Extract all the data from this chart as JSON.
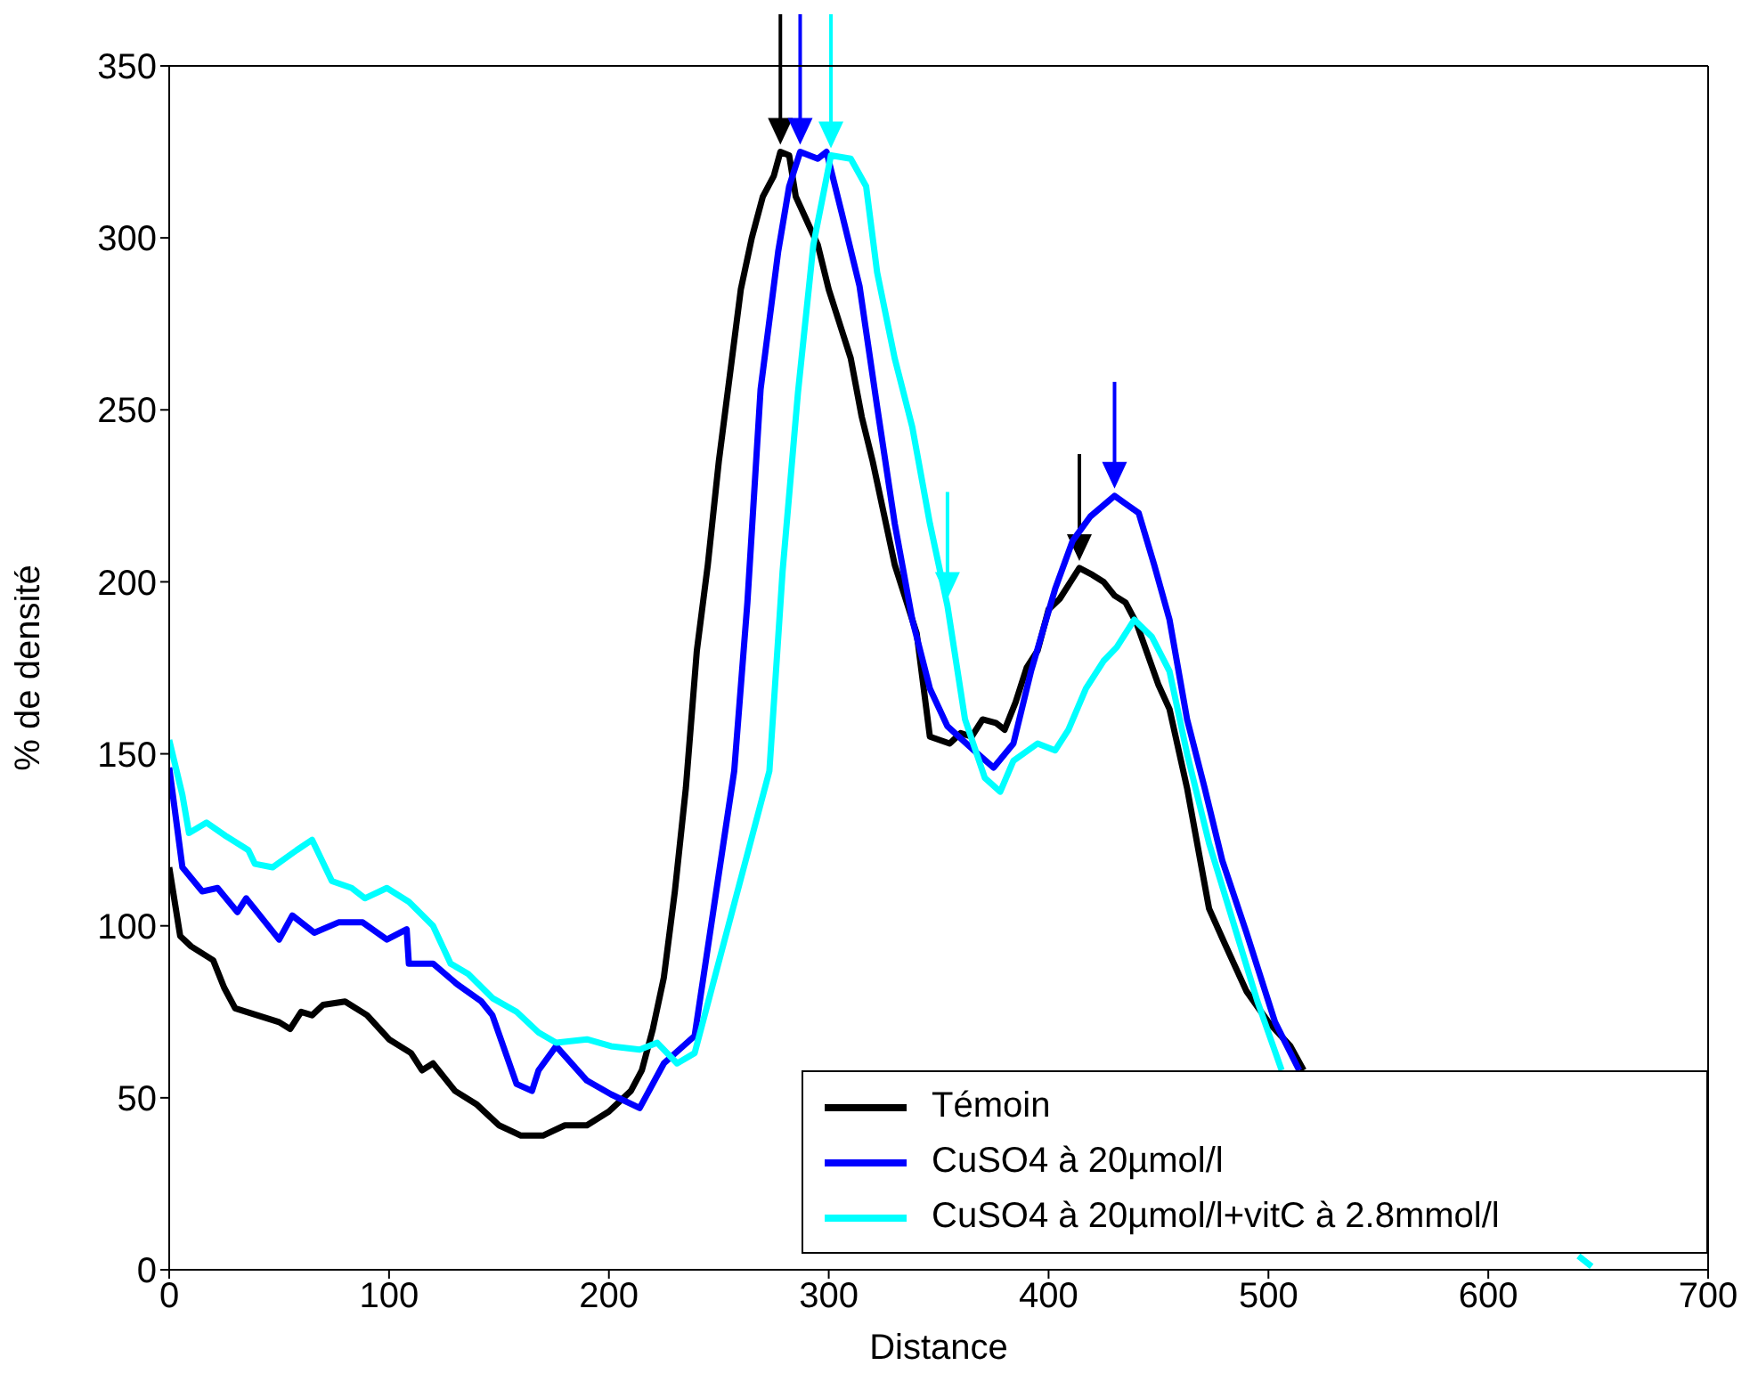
{
  "chart_data": {
    "type": "line",
    "xlabel": "Distance",
    "ylabel": "% de densité",
    "xlim": [
      0,
      700
    ],
    "xticks": [
      0,
      100,
      200,
      300,
      400,
      500,
      600,
      700
    ],
    "ylim": [
      0,
      350
    ],
    "yticks": [
      0,
      50,
      100,
      150,
      200,
      250,
      300,
      350
    ],
    "grid": false,
    "legend": "bottom right",
    "marker": "none",
    "line_style": "solid",
    "series": [
      {
        "name": "Témoin",
        "color": "#000000",
        "x": [
          0,
          5,
          10,
          20,
          25,
          30,
          40,
          50,
          55,
          60,
          65,
          70,
          80,
          90,
          100,
          110,
          115,
          120,
          130,
          140,
          150,
          160,
          170,
          180,
          190,
          200,
          210,
          215,
          220,
          225,
          230,
          235,
          240,
          245,
          250,
          255,
          260,
          265,
          270,
          275,
          278,
          282,
          285,
          290,
          295,
          300,
          305,
          310,
          315,
          320,
          330,
          340,
          346,
          355,
          360,
          365,
          370,
          376,
          380,
          385,
          390,
          395,
          400,
          405,
          410,
          414,
          420,
          425,
          430,
          435,
          440,
          450,
          455,
          463,
          473,
          480,
          490,
          500,
          510,
          516
        ],
        "values": [
          117,
          97,
          94,
          90,
          82,
          76,
          74,
          72,
          70,
          75,
          74,
          77,
          78,
          74,
          67,
          63,
          58,
          60,
          52,
          48,
          42,
          39,
          39,
          42,
          42,
          46,
          52,
          58,
          70,
          85,
          110,
          140,
          180,
          205,
          235,
          260,
          285,
          300,
          312,
          318,
          325,
          324,
          312,
          305,
          298,
          285,
          275,
          265,
          248,
          235,
          205,
          185,
          155,
          153,
          156,
          155,
          160,
          159,
          157,
          165,
          175,
          180,
          192,
          195,
          200,
          204,
          202,
          200,
          196,
          194,
          188,
          170,
          163,
          140,
          105,
          95,
          81,
          72,
          65,
          58
        ]
      },
      {
        "name": "CuSO4 à 20µmol/l",
        "color": "#0000ff",
        "x": [
          0,
          6,
          15,
          22,
          31,
          35,
          50,
          56,
          66,
          77,
          88,
          99,
          108,
          109,
          120,
          131,
          142,
          147,
          158,
          165,
          168,
          176,
          190,
          201,
          214,
          225,
          239,
          257,
          263,
          269,
          277,
          282,
          287,
          295,
          299,
          306,
          314,
          322,
          330,
          338,
          346,
          354,
          366,
          375,
          384,
          392,
          403,
          411,
          419,
          430,
          441,
          448,
          455,
          463,
          471,
          479,
          490,
          503,
          514
        ],
        "values": [
          146,
          117,
          110,
          111,
          104,
          108,
          96,
          103,
          98,
          101,
          101,
          96,
          99,
          89,
          89,
          83,
          78,
          74,
          54,
          52,
          58,
          65,
          55,
          51,
          47,
          60,
          68,
          145,
          194,
          256,
          296,
          315,
          325,
          323,
          325,
          307,
          286,
          251,
          217,
          189,
          169,
          158,
          151,
          146,
          153,
          174,
          198,
          212,
          219,
          225,
          220,
          205,
          189,
          160,
          140,
          119,
          98,
          72,
          58
        ]
      },
      {
        "name": "CuSO4 à 20µmol/l+vitC à 2.8mmol/l",
        "color": "#00ffff",
        "x": [
          0,
          6,
          9,
          17,
          26,
          36,
          39,
          47,
          58,
          65,
          74,
          83,
          89,
          99,
          109,
          120,
          128,
          136,
          147,
          158,
          168,
          176,
          190,
          201,
          214,
          222,
          231,
          239,
          273,
          279,
          286,
          293,
          301,
          310,
          317,
          322,
          330,
          338,
          346,
          354,
          362,
          371,
          378,
          384,
          395,
          403,
          409,
          417,
          425,
          431,
          439,
          447,
          455,
          463,
          473,
          484,
          495,
          506,
          560,
          641,
          647
        ],
        "values": [
          154,
          138,
          127,
          130,
          126,
          122,
          118,
          117,
          122,
          125,
          113,
          111,
          108,
          111,
          107,
          100,
          89,
          86,
          79,
          75,
          69,
          66,
          67,
          65,
          64,
          66,
          60,
          63,
          145,
          203,
          255,
          298,
          324,
          323,
          315,
          290,
          265,
          245,
          217,
          193,
          160,
          143,
          139,
          148,
          153,
          151,
          157,
          169,
          177,
          181,
          189,
          184,
          174,
          150,
          124,
          101,
          78,
          58,
          null,
          4,
          1
        ]
      }
    ]
  }
}
